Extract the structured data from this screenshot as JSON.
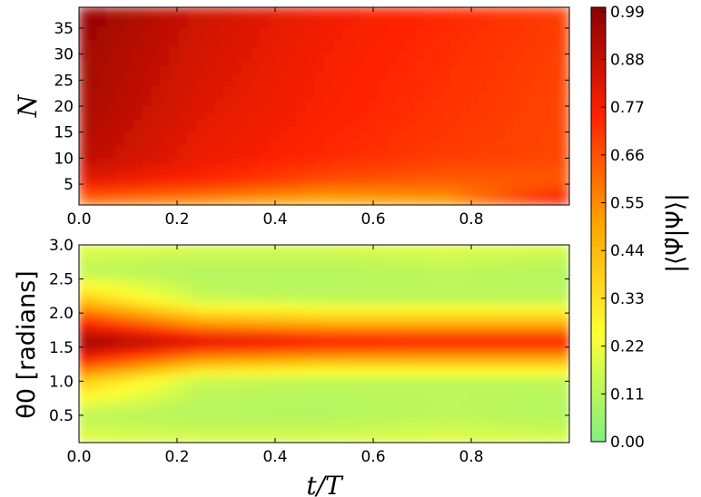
{
  "chart_data": [
    {
      "type": "heatmap",
      "panel": "top",
      "xlabel": "",
      "ylabel": "N",
      "xlim": [
        0.0,
        1.0
      ],
      "ylim": [
        1,
        39
      ],
      "xticks": [
        "0.0",
        "0.2",
        "0.4",
        "0.6",
        "0.8"
      ],
      "yticks": [
        "5",
        "10",
        "15",
        "20",
        "25",
        "30",
        "35"
      ],
      "x": [
        0.0,
        0.25,
        0.5,
        0.75,
        1.0
      ],
      "y": [
        2,
        5,
        10,
        20,
        30,
        38
      ],
      "z": [
        [
          0.62,
          0.55,
          0.48,
          0.52,
          0.82
        ],
        [
          0.8,
          0.74,
          0.66,
          0.63,
          0.64
        ],
        [
          0.9,
          0.79,
          0.74,
          0.7,
          0.68
        ],
        [
          0.94,
          0.82,
          0.76,
          0.72,
          0.68
        ],
        [
          0.96,
          0.84,
          0.77,
          0.73,
          0.69
        ],
        [
          0.98,
          0.86,
          0.78,
          0.74,
          0.7
        ]
      ]
    },
    {
      "type": "heatmap",
      "panel": "bottom",
      "xlabel": "t/T",
      "ylabel": "θ0 [radians]",
      "xlim": [
        0.0,
        1.0
      ],
      "ylim": [
        0.1,
        3.0
      ],
      "xticks": [
        "0.0",
        "0.2",
        "0.4",
        "0.6",
        "0.8"
      ],
      "yticks": [
        "0.5",
        "1.0",
        "1.5",
        "2.0",
        "2.5",
        "3.0"
      ],
      "x": [
        0.0,
        0.25,
        0.5,
        0.75,
        1.0
      ],
      "y": [
        0.1,
        0.5,
        1.0,
        1.3,
        1.57,
        1.85,
        2.2,
        2.6,
        3.0
      ],
      "z": [
        [
          0.2,
          0.18,
          0.18,
          0.2,
          0.18
        ],
        [
          0.12,
          0.1,
          0.1,
          0.12,
          0.1
        ],
        [
          0.4,
          0.14,
          0.12,
          0.12,
          0.12
        ],
        [
          0.75,
          0.5,
          0.45,
          0.45,
          0.45
        ],
        [
          0.98,
          0.85,
          0.8,
          0.78,
          0.78
        ],
        [
          0.75,
          0.5,
          0.45,
          0.45,
          0.45
        ],
        [
          0.4,
          0.14,
          0.12,
          0.12,
          0.12
        ],
        [
          0.12,
          0.1,
          0.1,
          0.12,
          0.1
        ],
        [
          0.2,
          0.18,
          0.18,
          0.2,
          0.18
        ]
      ]
    }
  ],
  "colorbar": {
    "label": "|⟨Ψ̃|Ψ⟩|",
    "ticks": [
      "0.00",
      "0.11",
      "0.22",
      "0.33",
      "0.44",
      "0.55",
      "0.66",
      "0.77",
      "0.88",
      "0.99"
    ],
    "range": [
      0.0,
      1.0
    ],
    "colors": [
      "#7ff07f",
      "#ffff33",
      "#ffa500",
      "#ff2200",
      "#8b0000"
    ]
  }
}
